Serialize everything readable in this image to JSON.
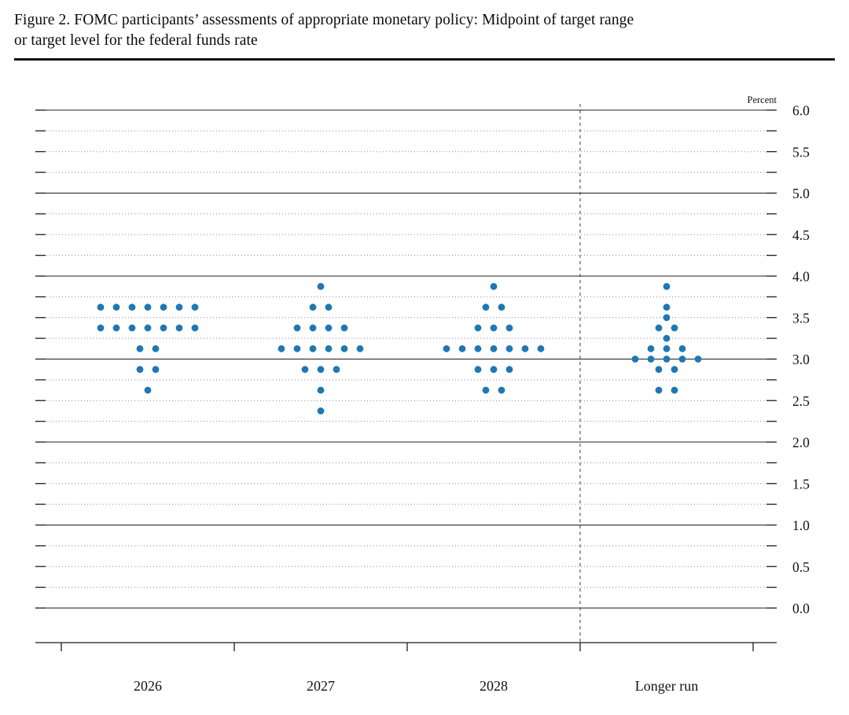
{
  "header": {
    "title_line1": "Figure 2. FOMC participants’ assessments of appropriate monetary policy: Midpoint of target range",
    "title_line2": "or target level for the federal funds rate"
  },
  "chart_data": {
    "type": "scatter",
    "title": "FOMC participants’ assessments of appropriate monetary policy: Midpoint of target range or target level for the federal funds rate",
    "ylabel": "Percent",
    "ylim": [
      0.0,
      6.0
    ],
    "yticks": [
      "6.0",
      "5.5",
      "5.0",
      "4.5",
      "4.0",
      "3.5",
      "3.0",
      "2.5",
      "2.0",
      "1.5",
      "1.0",
      "0.5",
      "0.0"
    ],
    "grid": {
      "major_step": 1.0,
      "minor_step": 0.25,
      "major_style": "solid",
      "minor_style": "dotted"
    },
    "legend_position": "none",
    "separator_after_category": "2028",
    "categories": [
      "2026",
      "2027",
      "2028",
      "Longer run"
    ],
    "dot_color": "#1f77b4",
    "dot_unit": "number of FOMC participants at each federal funds rate midpoint",
    "series": [
      {
        "category": "2026",
        "dots": [
          {
            "rate": 3.625,
            "count": 7
          },
          {
            "rate": 3.375,
            "count": 7
          },
          {
            "rate": 3.125,
            "count": 2
          },
          {
            "rate": 2.875,
            "count": 2
          },
          {
            "rate": 2.625,
            "count": 1
          }
        ]
      },
      {
        "category": "2027",
        "dots": [
          {
            "rate": 3.875,
            "count": 1
          },
          {
            "rate": 3.625,
            "count": 2
          },
          {
            "rate": 3.375,
            "count": 4
          },
          {
            "rate": 3.125,
            "count": 6
          },
          {
            "rate": 2.875,
            "count": 3
          },
          {
            "rate": 2.625,
            "count": 1
          },
          {
            "rate": 2.375,
            "count": 1
          }
        ]
      },
      {
        "category": "2028",
        "dots": [
          {
            "rate": 3.875,
            "count": 1
          },
          {
            "rate": 3.625,
            "count": 2
          },
          {
            "rate": 3.375,
            "count": 3
          },
          {
            "rate": 3.125,
            "count": 7
          },
          {
            "rate": 2.875,
            "count": 3
          },
          {
            "rate": 2.625,
            "count": 2
          }
        ]
      },
      {
        "category": "Longer run",
        "dots": [
          {
            "rate": 3.875,
            "count": 1
          },
          {
            "rate": 3.625,
            "count": 1
          },
          {
            "rate": 3.5,
            "count": 1
          },
          {
            "rate": 3.375,
            "count": 2
          },
          {
            "rate": 3.25,
            "count": 1
          },
          {
            "rate": 3.125,
            "count": 3
          },
          {
            "rate": 3.0,
            "count": 5
          },
          {
            "rate": 2.875,
            "count": 2
          },
          {
            "rate": 2.625,
            "count": 2
          }
        ]
      }
    ]
  }
}
